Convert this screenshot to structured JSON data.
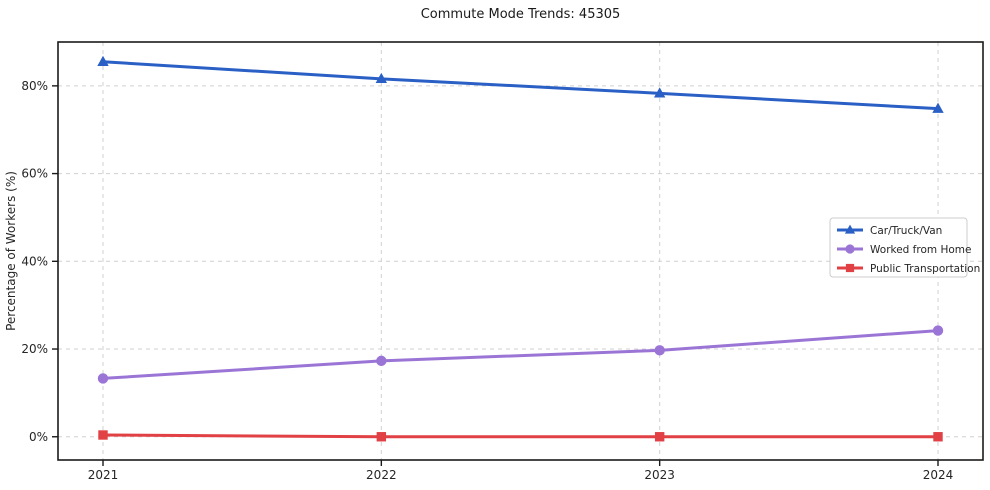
{
  "chart_data": {
    "type": "line",
    "title": "Commute Mode Trends: 45305",
    "xlabel": "",
    "ylabel": "Percentage of Workers (%)",
    "categories": [
      "2021",
      "2022",
      "2023",
      "2024"
    ],
    "y_ticks": [
      0,
      20,
      40,
      60,
      80
    ],
    "y_tick_labels": [
      "0%",
      "20%",
      "40%",
      "60%",
      "80%"
    ],
    "ylim": [
      -5.3,
      90
    ],
    "grid": true,
    "grid_style": "dashed",
    "legend_position": "center right",
    "series": [
      {
        "name": "Car/Truck/Van",
        "marker": "triangle",
        "color": "#2a5fc5",
        "values": [
          85.5,
          81.6,
          78.3,
          74.8
        ]
      },
      {
        "name": "Worked from Home",
        "marker": "circle",
        "color": "#9b75d6",
        "values": [
          13.3,
          17.3,
          19.7,
          24.2
        ]
      },
      {
        "name": "Public Transportation",
        "marker": "square",
        "color": "#e14144",
        "values": [
          0.4,
          0.0,
          0.0,
          0.0
        ]
      }
    ],
    "colors": {
      "spine": "#1a1a1a",
      "grid": "#d0d0d0",
      "tick_text": "#262626",
      "legend_border": "#cccccc",
      "legend_bg": "#ffffff"
    }
  }
}
